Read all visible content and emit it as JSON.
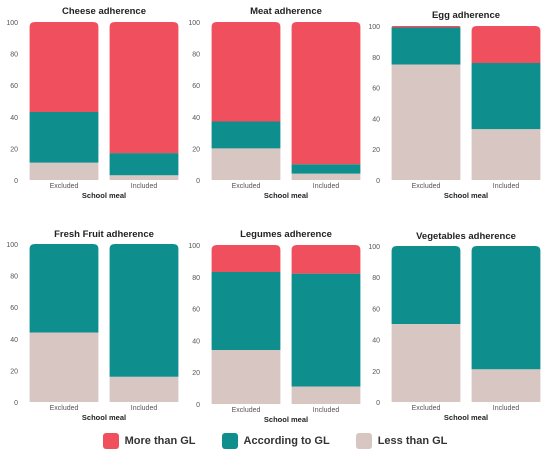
{
  "colors": {
    "more": "#f04f5e",
    "according": "#0e8e8d",
    "less": "#d8c6c2",
    "axis_text": "#555555",
    "title_text": "#222222"
  },
  "legend": {
    "more_label": "More than GL",
    "according_label": "According to GL",
    "less_label": "Less than GL"
  },
  "chart_data": [
    {
      "type": "bar",
      "stacked": true,
      "title": "Cheese adherence",
      "xlabel": "School meal",
      "categories": [
        "Excluded",
        "Included"
      ],
      "ylim": [
        0,
        100
      ],
      "yticks": [
        0,
        20,
        40,
        60,
        80,
        100
      ],
      "series": [
        {
          "name": "Less than GL",
          "values": [
            11,
            3
          ]
        },
        {
          "name": "According to GL",
          "values": [
            32,
            14
          ]
        },
        {
          "name": "More than GL",
          "values": [
            57,
            83
          ]
        }
      ]
    },
    {
      "type": "bar",
      "stacked": true,
      "title": "Meat adherence",
      "xlabel": "School meal",
      "categories": [
        "Excluded",
        "Included"
      ],
      "ylim": [
        0,
        100
      ],
      "yticks": [
        0,
        20,
        40,
        60,
        80,
        100
      ],
      "series": [
        {
          "name": "Less than GL",
          "values": [
            20,
            4
          ]
        },
        {
          "name": "According to GL",
          "values": [
            17,
            6
          ]
        },
        {
          "name": "More than GL",
          "values": [
            63,
            90
          ]
        }
      ]
    },
    {
      "type": "bar",
      "stacked": true,
      "title": "Egg adherence",
      "xlabel": "School meal",
      "categories": [
        "Excluded",
        "Included"
      ],
      "ylim": [
        0,
        100
      ],
      "yticks": [
        0,
        20,
        40,
        60,
        80,
        100
      ],
      "series": [
        {
          "name": "Less than GL",
          "values": [
            75,
            33
          ]
        },
        {
          "name": "According to GL",
          "values": [
            24,
            43
          ]
        },
        {
          "name": "More than GL",
          "values": [
            1,
            24
          ]
        }
      ]
    },
    {
      "type": "bar",
      "stacked": true,
      "title": "Fresh Fruit adherence",
      "xlabel": "School meal",
      "categories": [
        "Excluded",
        "Included"
      ],
      "ylim": [
        0,
        100
      ],
      "yticks": [
        0,
        20,
        40,
        60,
        80,
        100
      ],
      "series": [
        {
          "name": "Less than GL",
          "values": [
            44,
            16
          ]
        },
        {
          "name": "According to GL",
          "values": [
            56,
            84
          ]
        },
        {
          "name": "More than GL",
          "values": [
            0,
            0
          ]
        }
      ]
    },
    {
      "type": "bar",
      "stacked": true,
      "title": "Legumes adherence",
      "xlabel": "School meal",
      "categories": [
        "Excluded",
        "Included"
      ],
      "ylim": [
        0,
        100
      ],
      "yticks": [
        0,
        20,
        40,
        60,
        80,
        100
      ],
      "series": [
        {
          "name": "Less than GL",
          "values": [
            34,
            11
          ]
        },
        {
          "name": "According to GL",
          "values": [
            49,
            71
          ]
        },
        {
          "name": "More than GL",
          "values": [
            17,
            18
          ]
        }
      ]
    },
    {
      "type": "bar",
      "stacked": true,
      "title": "Vegetables adherence",
      "xlabel": "School meal",
      "categories": [
        "Excluded",
        "Included"
      ],
      "ylim": [
        0,
        100
      ],
      "yticks": [
        0,
        20,
        40,
        60,
        80,
        100
      ],
      "series": [
        {
          "name": "Less than GL",
          "values": [
            50,
            21
          ]
        },
        {
          "name": "According to GL",
          "values": [
            50,
            79
          ]
        },
        {
          "name": "More than GL",
          "values": [
            0,
            0
          ]
        }
      ]
    }
  ]
}
